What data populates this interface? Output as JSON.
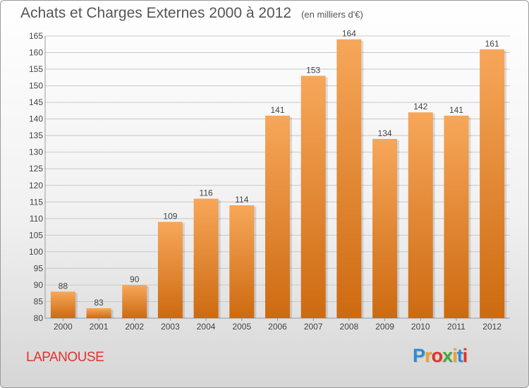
{
  "title": "Achats et Charges Externes 2000 à 2012",
  "unit_label": "(en milliers d'€)",
  "commune": "LAPANOUSE",
  "brand": {
    "letters": [
      "P",
      "r",
      "o",
      "x",
      "i",
      "t",
      "i"
    ],
    "colors": [
      "#2e8bd6",
      "#f0a030",
      "#e2342c",
      "#4aa63c",
      "#f0a030",
      "#2e8bd6",
      "#e2342c"
    ]
  },
  "colors": {
    "bar_top": "#f7a75a",
    "bar_bottom": "#cd6a10",
    "grid": "#c8c8c8",
    "axis_text": "#444444",
    "title": "#555555",
    "commune": "#e0342c"
  },
  "chart_data": {
    "type": "bar",
    "title": "Achats et Charges Externes 2000 à 2012",
    "categories": [
      "2000",
      "2001",
      "2002",
      "2003",
      "2004",
      "2005",
      "2006",
      "2007",
      "2008",
      "2009",
      "2010",
      "2011",
      "2012"
    ],
    "values": [
      88,
      83,
      90,
      109,
      116,
      114,
      141,
      153,
      164,
      134,
      142,
      141,
      161
    ],
    "ylim": [
      80,
      165
    ],
    "yticks": [
      80,
      85,
      90,
      95,
      100,
      105,
      110,
      115,
      120,
      125,
      130,
      135,
      140,
      145,
      150,
      155,
      160,
      165
    ],
    "grid": true,
    "data_labels": true
  }
}
